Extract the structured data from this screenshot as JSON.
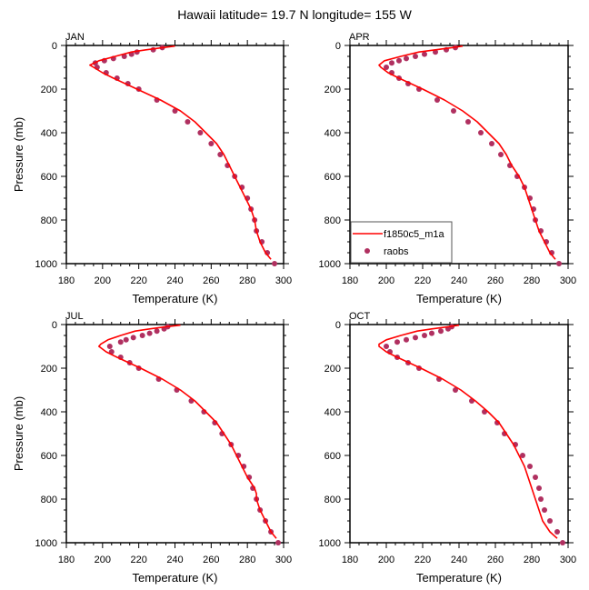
{
  "chart_data": {
    "title": "Hawaii  latitude= 19.7 N longitude= 155 W",
    "type": "line",
    "legend": {
      "placement": "bottom-left",
      "panel": "APR",
      "entries": [
        {
          "label": "f1850c5_m1a",
          "kind": "line",
          "color": "#ff0000"
        },
        {
          "label": "raobs",
          "kind": "marker",
          "color": "#b03060"
        }
      ]
    },
    "panels": [
      {
        "label": "JAN",
        "xlabel": "Temperature (K)",
        "ylabel": "Pressure (mb)",
        "xlim": [
          180,
          300
        ],
        "ylim": [
          0,
          1000
        ],
        "y_inverted": true,
        "xticks": [
          "180",
          "200",
          "220",
          "240",
          "260",
          "280",
          "300"
        ],
        "yticks": [
          "0",
          "200",
          "400",
          "600",
          "800",
          "1000"
        ],
        "model": {
          "name": "f1850c5_m1a",
          "p": [
            3,
            10,
            20,
            30,
            50,
            70,
            90,
            100,
            125,
            150,
            200,
            250,
            300,
            350,
            400,
            450,
            500,
            550,
            600,
            650,
            700,
            750,
            775,
            800,
            850,
            900,
            950,
            980
          ],
          "t": [
            240,
            233,
            224,
            216,
            207,
            198,
            193,
            195,
            200,
            206,
            219,
            232,
            243,
            251,
            257,
            263,
            267,
            270,
            273,
            276,
            279,
            282,
            283,
            284,
            285,
            287,
            290,
            293
          ]
        },
        "raobs": {
          "name": "raobs",
          "p": [
            10,
            20,
            30,
            40,
            50,
            60,
            70,
            80,
            100,
            125,
            150,
            175,
            200,
            250,
            300,
            350,
            400,
            450,
            500,
            550,
            600,
            650,
            700,
            750,
            800,
            850,
            900,
            950,
            1000
          ],
          "t": [
            233,
            228,
            219,
            216,
            212,
            206,
            201,
            196,
            197,
            202,
            208,
            214,
            220,
            230,
            240,
            247,
            254,
            260,
            265,
            269,
            273,
            277,
            280,
            282,
            284,
            285,
            288,
            291,
            295
          ]
        }
      },
      {
        "label": "APR",
        "xlabel": "Temperature (K)",
        "ylabel": "",
        "xlim": [
          180,
          300
        ],
        "ylim": [
          0,
          1000
        ],
        "y_inverted": true,
        "xticks": [
          "180",
          "200",
          "220",
          "240",
          "260",
          "280",
          "300"
        ],
        "yticks": [
          "0",
          "200",
          "400",
          "600",
          "800",
          "1000"
        ],
        "model": {
          "name": "f1850c5_m1a",
          "p": [
            3,
            10,
            20,
            30,
            50,
            70,
            90,
            100,
            125,
            150,
            200,
            250,
            300,
            350,
            400,
            450,
            500,
            550,
            600,
            650,
            700,
            750,
            775,
            800,
            850,
            900,
            950,
            980
          ],
          "t": [
            242,
            236,
            227,
            218,
            208,
            199,
            196,
            197,
            201,
            207,
            220,
            232,
            242,
            250,
            256,
            262,
            266,
            269,
            273,
            276,
            278,
            280,
            281,
            282,
            284,
            287,
            290,
            293
          ]
        },
        "raobs": {
          "name": "raobs",
          "p": [
            10,
            20,
            30,
            40,
            50,
            60,
            70,
            80,
            100,
            125,
            150,
            175,
            200,
            250,
            300,
            350,
            400,
            450,
            500,
            550,
            600,
            650,
            700,
            750,
            800,
            850,
            900,
            950,
            1000
          ],
          "t": [
            238,
            233,
            227,
            221,
            216,
            211,
            207,
            203,
            200,
            203,
            207,
            212,
            218,
            228,
            237,
            245,
            252,
            258,
            263,
            268,
            272,
            276,
            279,
            281,
            282,
            285,
            288,
            291,
            295
          ]
        }
      },
      {
        "label": "JUL",
        "xlabel": "Temperature (K)",
        "ylabel": "Pressure (mb)",
        "xlim": [
          180,
          300
        ],
        "ylim": [
          0,
          1000
        ],
        "y_inverted": true,
        "xticks": [
          "180",
          "200",
          "220",
          "240",
          "260",
          "280",
          "300"
        ],
        "yticks": [
          "0",
          "200",
          "400",
          "600",
          "800",
          "1000"
        ],
        "model": {
          "name": "f1850c5_m1a",
          "p": [
            3,
            10,
            20,
            30,
            50,
            70,
            90,
            100,
            125,
            150,
            200,
            250,
            300,
            350,
            400,
            450,
            500,
            550,
            600,
            650,
            700,
            750,
            775,
            800,
            850,
            900,
            950,
            980
          ],
          "t": [
            243,
            235,
            226,
            218,
            210,
            203,
            199,
            198,
            202,
            208,
            221,
            233,
            243,
            251,
            257,
            263,
            267,
            271,
            274,
            277,
            280,
            284,
            285,
            285,
            287,
            290,
            293,
            296
          ]
        },
        "raobs": {
          "name": "raobs",
          "p": [
            10,
            20,
            30,
            40,
            50,
            60,
            70,
            80,
            100,
            125,
            150,
            175,
            200,
            250,
            300,
            350,
            400,
            450,
            500,
            550,
            600,
            650,
            700,
            750,
            800,
            850,
            900,
            950,
            1000
          ],
          "t": [
            236,
            234,
            230,
            226,
            222,
            217,
            213,
            210,
            204,
            205,
            210,
            215,
            220,
            231,
            241,
            249,
            256,
            262,
            266,
            271,
            275,
            278,
            281,
            283,
            285,
            287,
            290,
            293,
            297
          ]
        }
      },
      {
        "label": "OCT",
        "xlabel": "Temperature (K)",
        "ylabel": "",
        "xlim": [
          180,
          300
        ],
        "ylim": [
          0,
          1000
        ],
        "y_inverted": true,
        "xticks": [
          "180",
          "200",
          "220",
          "240",
          "260",
          "280",
          "300"
        ],
        "yticks": [
          "0",
          "200",
          "400",
          "600",
          "800",
          "1000"
        ],
        "model": {
          "name": "f1850c5_m1a",
          "p": [
            3,
            10,
            20,
            30,
            50,
            70,
            90,
            100,
            125,
            150,
            200,
            250,
            300,
            350,
            400,
            450,
            500,
            550,
            600,
            650,
            700,
            750,
            775,
            800,
            850,
            900,
            950,
            980
          ],
          "t": [
            240,
            234,
            225,
            217,
            208,
            200,
            196,
            196,
            200,
            206,
            219,
            231,
            241,
            249,
            256,
            262,
            266,
            270,
            273,
            276,
            278,
            280,
            281,
            282,
            284,
            286,
            290,
            294
          ]
        },
        "raobs": {
          "name": "raobs",
          "p": [
            10,
            20,
            30,
            40,
            50,
            60,
            70,
            80,
            100,
            125,
            150,
            175,
            200,
            250,
            300,
            350,
            400,
            450,
            500,
            550,
            600,
            650,
            700,
            750,
            800,
            850,
            900,
            950,
            1000
          ],
          "t": [
            236,
            234,
            230,
            225,
            221,
            216,
            211,
            206,
            200,
            202,
            206,
            212,
            218,
            229,
            238,
            247,
            254,
            261,
            265,
            271,
            275,
            279,
            282,
            284,
            285,
            287,
            290,
            294,
            297
          ]
        }
      }
    ]
  }
}
